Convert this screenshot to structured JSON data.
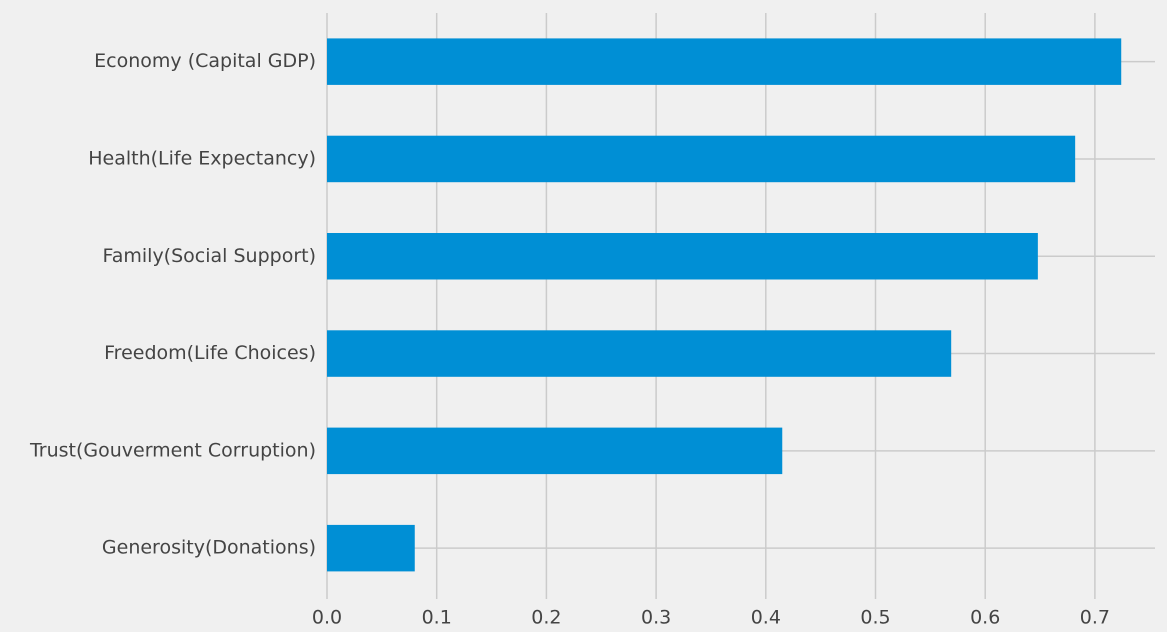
{
  "chart_data": {
    "type": "bar",
    "orientation": "horizontal",
    "title": "",
    "xlabel": "",
    "ylabel": "",
    "categories": [
      "Economy (Capital GDP)",
      "Health(Life Expectancy)",
      "Family(Social Support)",
      "Freedom(Life Choices)",
      "Trust(Gouverment Corruption)",
      "Generosity(Donations)"
    ],
    "values": [
      0.724,
      0.682,
      0.648,
      0.569,
      0.415,
      0.08
    ],
    "xlim": [
      0.0,
      0.76
    ],
    "xticks": [
      0.0,
      0.1,
      0.2,
      0.3,
      0.4,
      0.5,
      0.6,
      0.7
    ],
    "xtick_labels": [
      "0.0",
      "0.1",
      "0.2",
      "0.3",
      "0.4",
      "0.5",
      "0.6",
      "0.7"
    ],
    "grid": true,
    "colors": {
      "background": "#f0f0f0",
      "bar": "#008fd5",
      "grid": "#cbcbcb",
      "text": "#444444"
    }
  }
}
